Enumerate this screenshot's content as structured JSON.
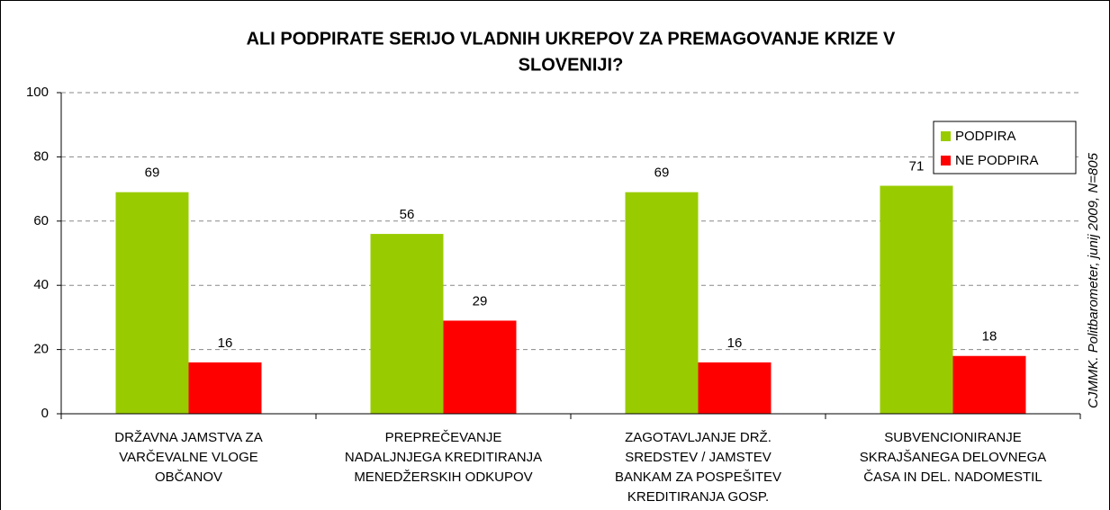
{
  "chart_data": {
    "type": "bar",
    "title": [
      "ALI PODPIRATE SERIJO VLADNIH UKREPOV ZA PREMAGOVANJE KRIZE V",
      "SLOVENIJI?"
    ],
    "note": "CJMMK. Politbarometer, junij 2009, N=805",
    "categories": [
      [
        "DRŽAVNA JAMSTVA ZA",
        "VARČEVALNE VLOGE",
        "OBČANOV"
      ],
      [
        "PREPREČEVANJE",
        "NADALJNJEGA KREDITIRANJA",
        "MENEDŽERSKIH ODKUPOV"
      ],
      [
        "ZAGOTAVLJANJE DRŽ.",
        "SREDSTEV / JAMSTEV",
        "BANKAM ZA POSPEŠITEV",
        "KREDITIRANJA GOSP."
      ],
      [
        "SUBVENCIONIRANJE",
        "SKRAJŠANEGA DELOVNEGA",
        "ČASA IN DEL. NADOMESTIL"
      ]
    ],
    "series": [
      {
        "name": "PODPIRA",
        "color": "#99cc00",
        "values": [
          69,
          56,
          69,
          71
        ]
      },
      {
        "name": "NE PODPIRA",
        "color": "#ff0000",
        "values": [
          16,
          29,
          16,
          18
        ]
      }
    ],
    "ylim": [
      0,
      100
    ],
    "yticks": [
      0,
      20,
      40,
      60,
      80,
      100
    ],
    "grid": true,
    "legend": "top-right"
  }
}
